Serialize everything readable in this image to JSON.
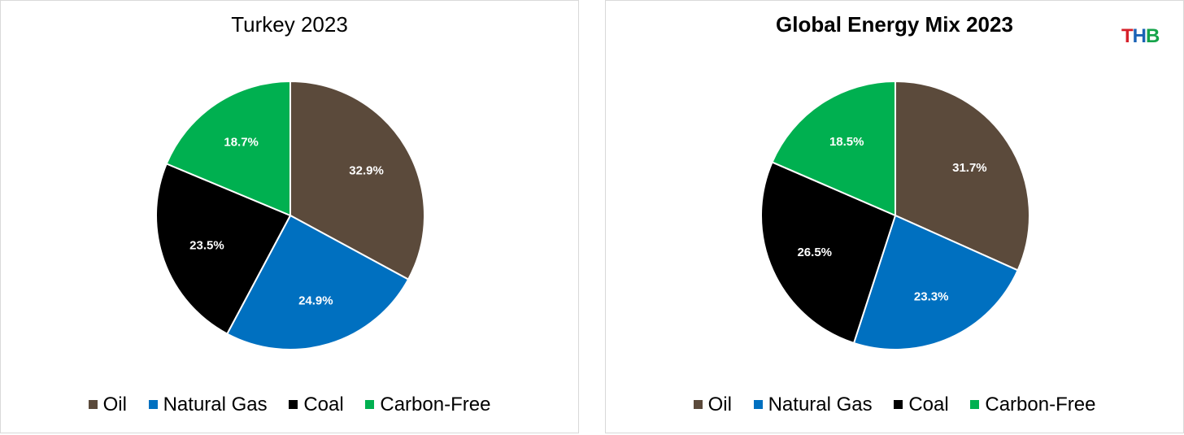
{
  "chart_data": [
    {
      "type": "pie",
      "title": "Turkey 2023",
      "categories": [
        "Oil",
        "Natural Gas",
        "Coal",
        "Carbon-Free"
      ],
      "values": [
        32.9,
        24.9,
        23.5,
        18.7
      ],
      "labels": [
        "32.9%",
        "24.9%",
        "23.5%",
        "18.7%"
      ],
      "colors": [
        "#5b4a3b",
        "#0070c0",
        "#000000",
        "#00b050"
      ],
      "legend_position": "bottom"
    },
    {
      "type": "pie",
      "title": "Global Energy Mix 2023",
      "categories": [
        "Oil",
        "Natural Gas",
        "Coal",
        "Carbon-Free"
      ],
      "values": [
        31.7,
        23.3,
        26.5,
        18.5
      ],
      "labels": [
        "31.7%",
        "23.3%",
        "26.5%",
        "18.5%"
      ],
      "colors": [
        "#5b4a3b",
        "#0070c0",
        "#000000",
        "#00b050"
      ],
      "legend_position": "bottom"
    }
  ],
  "brand": {
    "letters": [
      "T",
      "H",
      "B"
    ],
    "colors": [
      "#d6202a",
      "#1a62b5",
      "#15a34a"
    ]
  }
}
